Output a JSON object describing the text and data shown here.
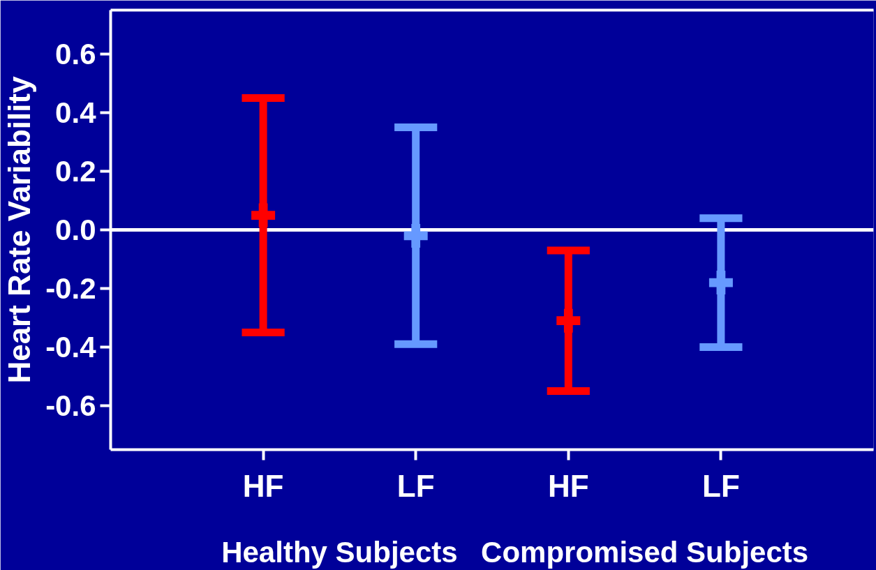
{
  "chart_data": {
    "type": "scatter",
    "ylabel": "Heart Rate Variability",
    "categories": [
      "HF",
      "LF",
      "HF",
      "LF"
    ],
    "values": [
      0.05,
      -0.02,
      -0.31,
      -0.18
    ],
    "errors": [
      0.4,
      0.37,
      0.24,
      0.22
    ],
    "colors": [
      "#ff0000",
      "#6699ff",
      "#ff0000",
      "#6699ff"
    ],
    "marker": "cross",
    "ylim": [
      -0.75,
      0.75
    ],
    "yticks": [
      -0.6,
      -0.4,
      -0.2,
      {
        "value": 0,
        "label": "0.0"
      },
      0.2,
      0.4,
      0.6
    ],
    "ref_lines": [
      {
        "axis": "y",
        "value": 0,
        "color": "#ffffff"
      }
    ],
    "annotations": [
      "Healthy Subjects",
      "Compromised Subjects"
    ]
  }
}
